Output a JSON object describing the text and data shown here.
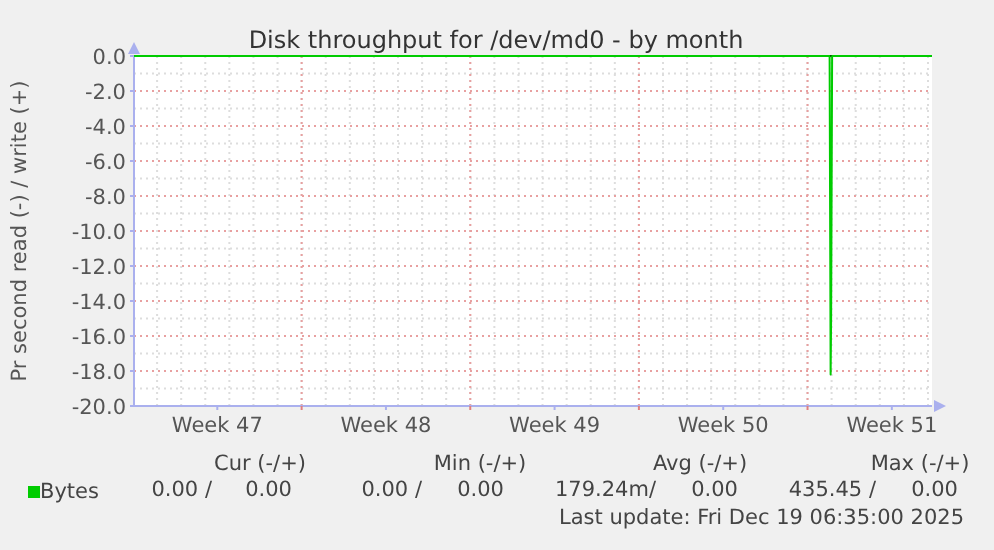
{
  "chart_data": {
    "type": "line",
    "title": "Disk throughput for /dev/md0 - by month",
    "ylabel": "Pr second read (-) / write (+)",
    "xlim": [
      "2025-11-17T01:00",
      "2025-12-20T04:00"
    ],
    "xticks": [
      {
        "value": "2025-11-20T12:00",
        "label": "Week 47"
      },
      {
        "value": "2025-11-24",
        "label": null
      },
      {
        "value": "2025-11-27T12:00",
        "label": "Week 48"
      },
      {
        "value": "2025-12-01",
        "label": null
      },
      {
        "value": "2025-12-04T12:00",
        "label": "Week 49"
      },
      {
        "value": "2025-12-08",
        "label": null
      },
      {
        "value": "2025-12-11T12:00",
        "label": "Week 50"
      },
      {
        "value": "2025-12-15",
        "label": null
      },
      {
        "value": "2025-12-18T12:00",
        "label": "Week 51"
      }
    ],
    "ylim": [
      -20,
      0
    ],
    "yticks": [
      {
        "value": 0,
        "label": "0.0"
      },
      {
        "value": -2,
        "label": "-2.0"
      },
      {
        "value": -4,
        "label": "-4.0"
      },
      {
        "value": -6,
        "label": "-6.0"
      },
      {
        "value": -8,
        "label": "-8.0"
      },
      {
        "value": -10,
        "label": "-10.0"
      },
      {
        "value": -12,
        "label": "-12.0"
      },
      {
        "value": -14,
        "label": "-14.0"
      },
      {
        "value": -16,
        "label": "-16.0"
      },
      {
        "value": -18,
        "label": "-18.0"
      },
      {
        "value": -20,
        "label": "-20.0"
      }
    ],
    "grid": true,
    "legend": "bottom",
    "marker": "none",
    "line_style": "solid",
    "ref_lines": [
      {
        "axis": "y",
        "value": 0,
        "color": "#000000"
      }
    ],
    "series": [
      {
        "name": "Bytes",
        "color": "#00cc00",
        "x": [
          "2025-11-17T01:00",
          "2025-12-15T22:00",
          "2025-12-15T23:00",
          "2025-12-15T23:30",
          "2025-12-16T00:30",
          "2025-12-20T04:00"
        ],
        "values": [
          0,
          0,
          -18.2,
          -15,
          0,
          0
        ]
      }
    ],
    "annotations": [
      "Cur (-/+)",
      "Min (-/+)",
      "Avg (-/+)",
      "Max (-/+)",
      "0.00 /",
      "0.00",
      "0.00 /",
      "0.00",
      "179.24m/",
      "0.00",
      "435.45 /",
      "0.00",
      "Last update: Fri Dec 19 06:35:00 2025"
    ]
  }
}
